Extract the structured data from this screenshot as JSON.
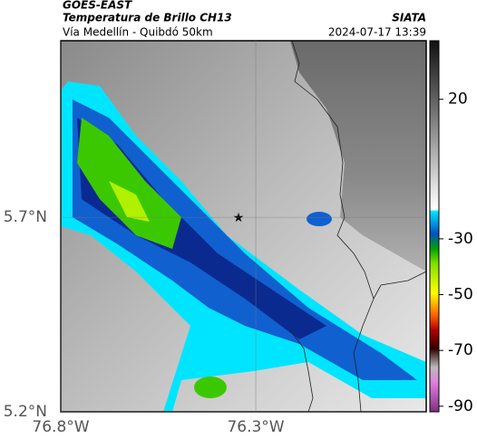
{
  "header": {
    "source": "GOES-EAST",
    "title": "Temperatura de Brillo CH13",
    "subtitle": "Vía Medellín - Quibdó 50km",
    "agency": "SIATA",
    "datetime": "2024-07-17 13:39"
  },
  "map": {
    "xlim": [
      -76.8,
      -75.863
    ],
    "ylim": [
      5.2,
      6.154
    ],
    "xticks": [
      {
        "value": -76.8,
        "label": "76.8°W"
      },
      {
        "value": -76.3,
        "label": "76.3°W"
      }
    ],
    "yticks": [
      {
        "value": 5.2,
        "label": "5.2°N"
      },
      {
        "value": 5.7,
        "label": "5.7°N"
      }
    ],
    "grid": true
  },
  "colorbar": {
    "lim": [
      -92,
      41
    ],
    "ticks": [
      20,
      -30,
      -50,
      -70,
      -90
    ]
  }
}
